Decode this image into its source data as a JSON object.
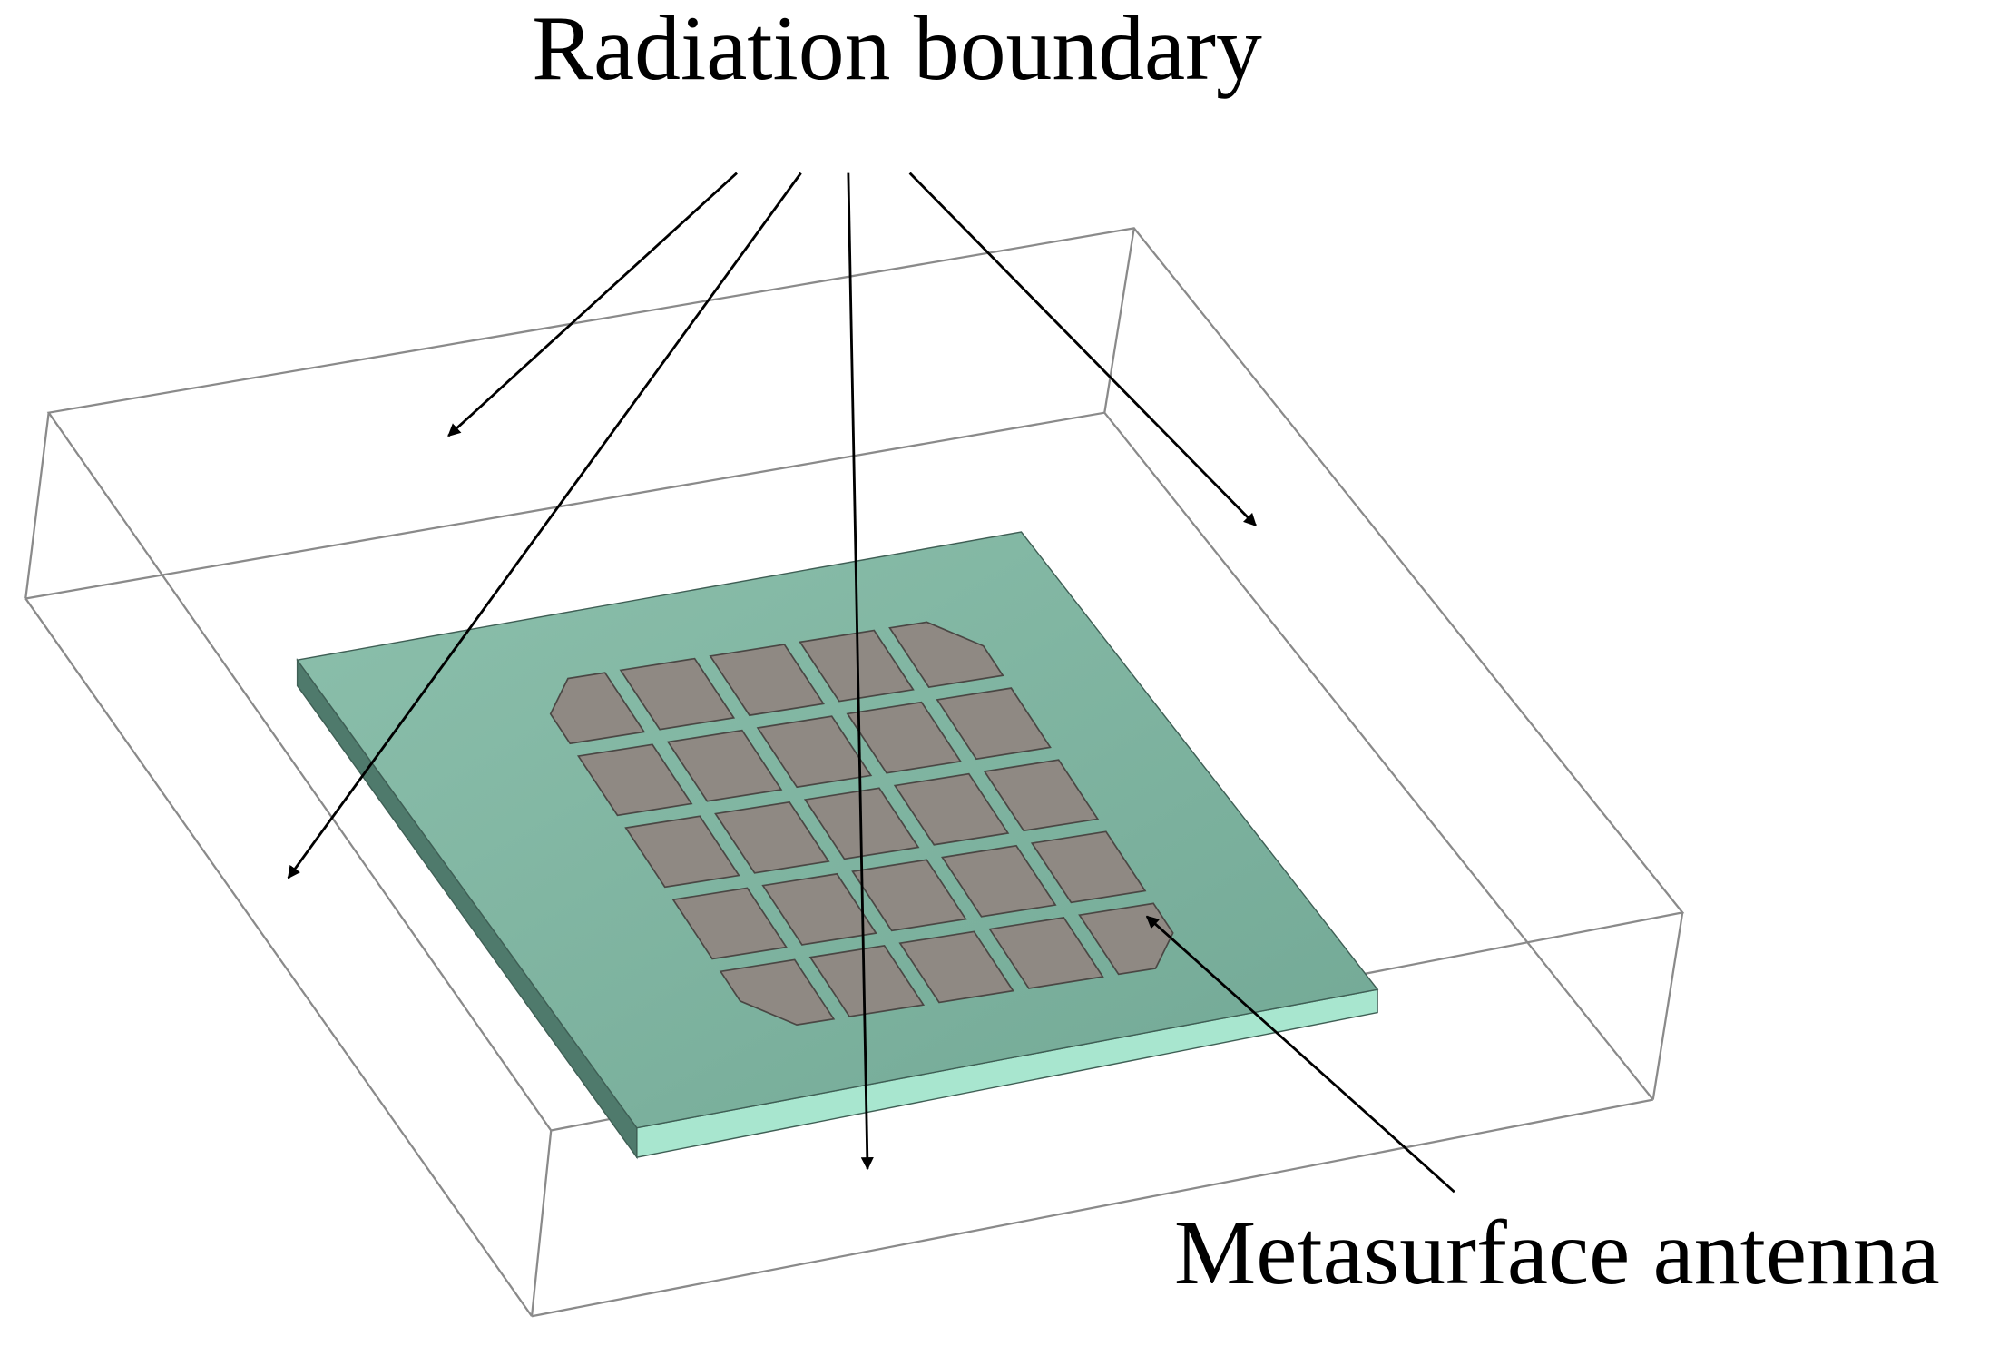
{
  "labels": {
    "top": "Radiation boundary",
    "bottom": "Metasurface antenna"
  }
}
